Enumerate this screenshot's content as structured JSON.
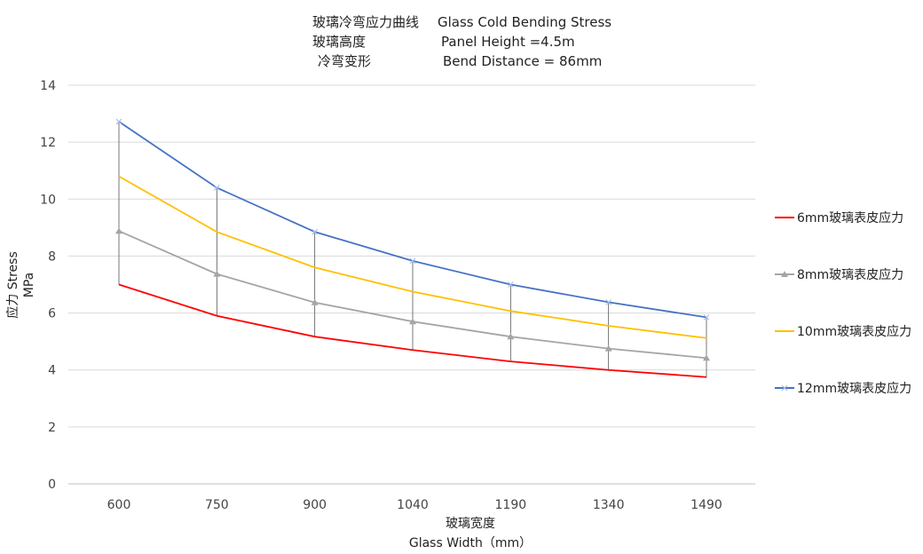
{
  "chart_data": {
    "type": "line",
    "title_lines": [
      {
        "label": "玻璃冷弯应力曲线",
        "value": "Glass Cold Bending Stress"
      },
      {
        "label": "玻璃高度",
        "value": "Panel Height =4.5m"
      },
      {
        "label": "冷弯变形",
        "value": "Bend Distance = 86mm"
      }
    ],
    "xlabel": [
      "玻璃宽度",
      "Glass Width（mm）"
    ],
    "ylabel": [
      "应力 Stress",
      "MPa"
    ],
    "categories": [
      "600",
      "750",
      "900",
      "1040",
      "1190",
      "1340",
      "1490"
    ],
    "ylim": [
      0,
      14
    ],
    "yticks": [
      "0",
      "2",
      "4",
      "6",
      "8",
      "10",
      "12",
      "14"
    ],
    "grid": "horizontal",
    "legend_position": "right",
    "series": [
      {
        "name": "6mm玻璃表皮应力",
        "color": "#ff0000",
        "marker": "none",
        "values": [
          7.0,
          5.9,
          5.17,
          4.7,
          4.3,
          4.0,
          3.75
        ]
      },
      {
        "name": "8mm玻璃表皮应力",
        "color": "#a5a5a5",
        "marker": "triangle",
        "values": [
          8.88,
          7.37,
          6.37,
          5.7,
          5.17,
          4.75,
          4.42
        ]
      },
      {
        "name": "10mm玻璃表皮应力",
        "color": "#ffc000",
        "marker": "none",
        "values": [
          10.8,
          8.85,
          7.6,
          6.75,
          6.07,
          5.55,
          5.12
        ]
      },
      {
        "name": "12mm玻璃表皮应力",
        "color": "#4472c4",
        "marker": "x",
        "values": [
          12.72,
          10.4,
          8.85,
          7.83,
          7.0,
          6.38,
          5.85
        ]
      }
    ],
    "drop_lines": true
  }
}
